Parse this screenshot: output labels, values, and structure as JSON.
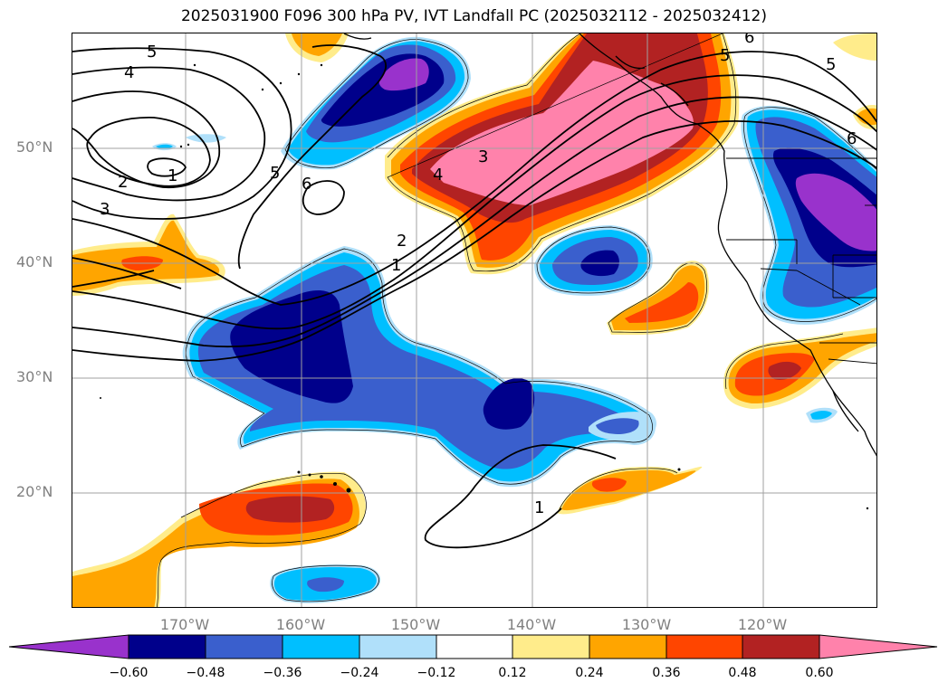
{
  "title": "2025031900 F096 300 hPa PV, IVT Landfall PC (2025032112 - 2025032412)",
  "lat_labels": [
    "50°N",
    "40°N",
    "30°N",
    "20°N"
  ],
  "lon_labels": [
    "170°W",
    "160°W",
    "150°W",
    "140°W",
    "130°W",
    "120°W"
  ],
  "contour_labels": [
    "5",
    "4",
    "3",
    "2",
    "1",
    "5",
    "6",
    "3",
    "4",
    "2",
    "1",
    "5",
    "6",
    "6",
    "5",
    "1"
  ],
  "colorbar": {
    "ticks": [
      "−0.60",
      "−0.48",
      "−0.36",
      "−0.24",
      "−0.12",
      "0.12",
      "0.24",
      "0.36",
      "0.48",
      "0.60"
    ],
    "colors": [
      "#9932cc",
      "#00008b",
      "#3a5fcd",
      "#00bfff",
      "#b0e0fa",
      "#ffffff",
      "#ffec8b",
      "#ffa500",
      "#ff4500",
      "#b22222",
      "#ff82ab"
    ]
  },
  "colors": {
    "purple": "#9932cc",
    "navy": "#00008b",
    "royal": "#3a5fcd",
    "sky": "#00bfff",
    "pale": "#b0e0fa",
    "yellow": "#ffec8b",
    "orange": "#ffa500",
    "redorange": "#ff4500",
    "firebrick": "#b22222",
    "pink": "#ff82ab"
  }
}
